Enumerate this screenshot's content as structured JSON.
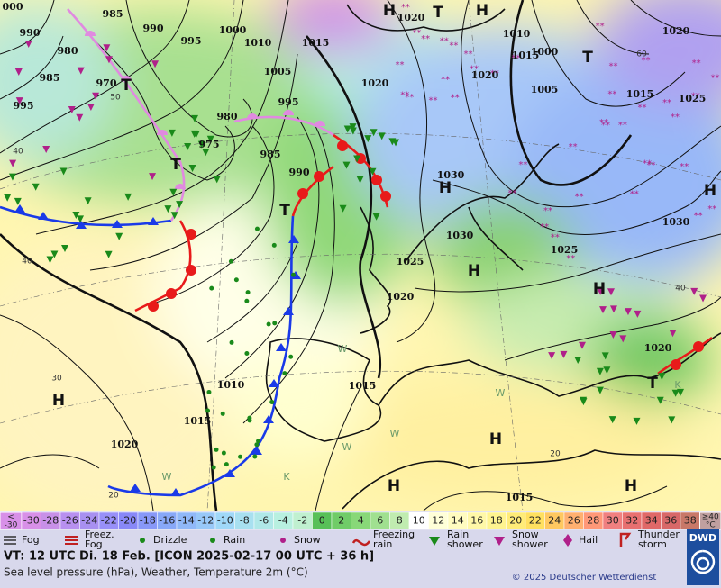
{
  "map": {
    "pressure_labels": [
      "000",
      "985",
      "990",
      "990",
      "995",
      "1000",
      "1010",
      "1015",
      "1020",
      "980",
      "985",
      "970",
      "1005",
      "1020",
      "995",
      "980",
      "995",
      "975",
      "985",
      "990",
      "1010",
      "1000",
      "1015",
      "1020",
      "1005",
      "1020",
      "1015",
      "1025",
      "1030",
      "1030",
      "1025",
      "1025",
      "1020",
      "1030",
      "1020",
      "1010",
      "1015",
      "1015",
      "1020",
      "1015"
    ],
    "centers": [
      "H",
      "T",
      "H",
      "T",
      "T",
      "T",
      "T",
      "H",
      "H",
      "H",
      "H",
      "H",
      "T",
      "H",
      "H",
      "H"
    ],
    "isotherm_labels": [
      "40",
      "30",
      "20",
      "60",
      "50",
      "40",
      "40",
      "20"
    ],
    "air_mass_labels": [
      "W",
      "W",
      "W",
      "W",
      "K",
      "K",
      "W"
    ]
  },
  "scale": {
    "low_label": [
      "<",
      "-30"
    ],
    "values": [
      -30,
      -28,
      -26,
      -24,
      -22,
      -20,
      -18,
      -16,
      -14,
      -12,
      -10,
      -8,
      -6,
      -4,
      -2,
      0,
      2,
      4,
      6,
      8,
      10,
      12,
      14,
      16,
      18,
      20,
      22,
      24,
      26,
      28,
      30,
      32,
      34,
      36,
      38
    ],
    "colors": [
      "#d890e8",
      "#c890e8",
      "#b890f0",
      "#a890f0",
      "#9890f8",
      "#8888f8",
      "#8898f8",
      "#88a8f8",
      "#90b8f8",
      "#98c8f8",
      "#a0d8f8",
      "#a8e0f0",
      "#b0e8e8",
      "#b8f0e0",
      "#c0f0d0",
      "#58c058",
      "#70cc68",
      "#88d878",
      "#a0e090",
      "#c0ecb0",
      "#ffffff",
      "#ffffd8",
      "#fffcc0",
      "#fff8a8",
      "#fff490",
      "#ffec78",
      "#ffe060",
      "#ffc860",
      "#ffb070",
      "#ff9878",
      "#f08080",
      "#e87070",
      "#e06868",
      "#d86868",
      "#c87868"
    ],
    "high_label": [
      "≥40",
      "°C"
    ]
  },
  "legend": [
    "Fog",
    "Freez. Fog",
    "Drizzle",
    "Rain",
    "Snow",
    "Freezing rain",
    "Rain shower",
    "Snow shower",
    "Hail",
    "Thunder storm"
  ],
  "footer": {
    "valid_time": "VT: 12 UTC Di.  18 Feb. [ICON 2025-02-17  00 UTC + 36 h]",
    "description": "Sea level pressure (hPa), Weather, Temperature 2m (°C)",
    "copyright": "© 2025 Deutscher Wetterdienst",
    "logo": "DWD"
  }
}
